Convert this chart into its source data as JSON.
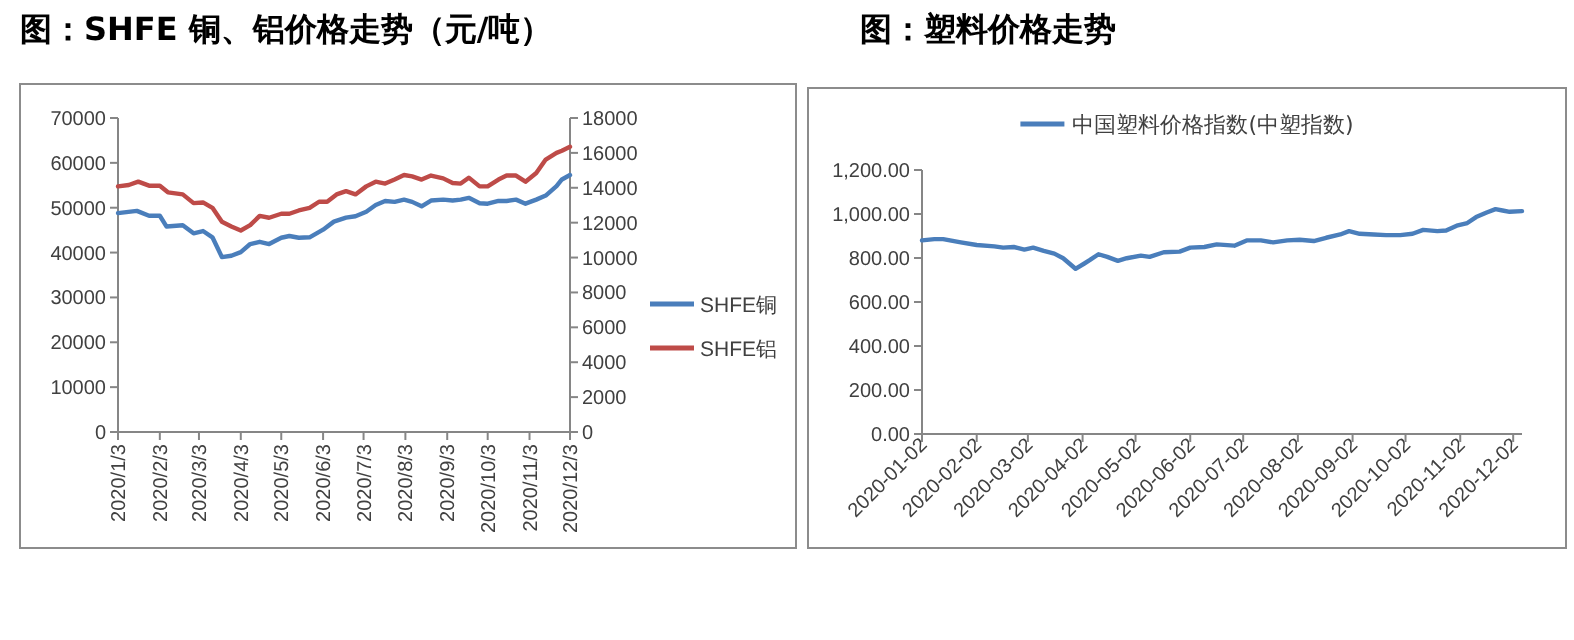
{
  "chart_data": [
    {
      "type": "line",
      "title": "图：SHFE 铜、铝价格走势（元/吨）",
      "xlim": [
        "2020-01-03",
        "2020-12-03"
      ],
      "xticks": [
        {
          "value": "2020-01-03",
          "label": "2020/1/3"
        },
        {
          "value": "2020-02-03",
          "label": "2020/2/3"
        },
        {
          "value": "2020-03-03",
          "label": "2020/3/3"
        },
        {
          "value": "2020-04-03",
          "label": "2020/4/3"
        },
        {
          "value": "2020-05-03",
          "label": "2020/5/3"
        },
        {
          "value": "2020-06-03",
          "label": "2020/6/3"
        },
        {
          "value": "2020-07-03",
          "label": "2020/7/3"
        },
        {
          "value": "2020-08-03",
          "label": "2020/8/3"
        },
        {
          "value": "2020-09-03",
          "label": "2020/9/3"
        },
        {
          "value": "2020-10-03",
          "label": "2020/10/3"
        },
        {
          "value": "2020-11-03",
          "label": "2020/11/3"
        },
        {
          "value": "2020-12-03",
          "label": "2020/12/3"
        }
      ],
      "ylim": [
        0,
        70000
      ],
      "yticks": [
        0,
        10000,
        20000,
        30000,
        40000,
        50000,
        60000,
        70000
      ],
      "y2lim": [
        0,
        18000
      ],
      "y2ticks": [
        0,
        2000,
        4000,
        6000,
        8000,
        10000,
        12000,
        14000,
        16000,
        18000
      ],
      "legend": "right",
      "series": [
        {
          "name": "SHFE铜",
          "color": "#4a7ebb",
          "x": [
            "2020-01-03",
            "2020-01-17",
            "2020-01-26",
            "2020-02-03",
            "2020-02-08",
            "2020-02-20",
            "2020-02-28",
            "2020-03-06",
            "2020-03-13",
            "2020-03-20",
            "2020-03-27",
            "2020-04-03",
            "2020-04-10",
            "2020-04-17",
            "2020-04-24",
            "2020-05-03",
            "2020-05-09",
            "2020-05-16",
            "2020-05-24",
            "2020-06-03",
            "2020-06-11",
            "2020-06-20",
            "2020-06-27",
            "2020-07-05",
            "2020-07-12",
            "2020-07-19",
            "2020-07-26",
            "2020-08-02",
            "2020-08-08",
            "2020-08-15",
            "2020-08-22",
            "2020-08-31",
            "2020-09-07",
            "2020-09-13",
            "2020-09-19",
            "2020-09-27",
            "2020-10-03",
            "2020-10-11",
            "2020-10-17",
            "2020-10-24",
            "2020-10-31",
            "2020-11-08",
            "2020-11-15",
            "2020-11-23",
            "2020-11-27",
            "2020-12-03"
          ],
          "values": [
            48800,
            49300,
            48200,
            48200,
            45800,
            46100,
            44300,
            44800,
            43400,
            39000,
            39300,
            40100,
            41900,
            42400,
            41900,
            43300,
            43700,
            43300,
            43400,
            45100,
            46900,
            47800,
            48100,
            49100,
            50600,
            51500,
            51300,
            51800,
            51300,
            50300,
            51600,
            51800,
            51600,
            51800,
            52200,
            51000,
            50900,
            51500,
            51500,
            51800,
            50900,
            51800,
            52700,
            54800,
            56300,
            57300
          ]
        },
        {
          "name": "SHFE铝",
          "color": "#be4b48",
          "axis": "y2",
          "x": [
            "2020-01-03",
            "2020-01-11",
            "2020-01-18",
            "2020-01-26",
            "2020-02-03",
            "2020-02-09",
            "2020-02-20",
            "2020-02-28",
            "2020-03-06",
            "2020-03-13",
            "2020-03-20",
            "2020-03-27",
            "2020-04-03",
            "2020-04-10",
            "2020-04-17",
            "2020-04-24",
            "2020-05-03",
            "2020-05-09",
            "2020-05-16",
            "2020-05-24",
            "2020-05-31",
            "2020-06-06",
            "2020-06-13",
            "2020-06-20",
            "2020-06-27",
            "2020-07-05",
            "2020-07-12",
            "2020-07-19",
            "2020-07-26",
            "2020-08-02",
            "2020-08-08",
            "2020-08-15",
            "2020-08-22",
            "2020-08-31",
            "2020-09-07",
            "2020-09-13",
            "2020-09-19",
            "2020-09-27",
            "2020-10-03",
            "2020-10-11",
            "2020-10-17",
            "2020-10-24",
            "2020-10-31",
            "2020-11-08",
            "2020-11-15",
            "2020-11-23",
            "2020-11-27",
            "2020-12-03"
          ],
          "values": [
            14080,
            14160,
            14350,
            14120,
            14120,
            13740,
            13620,
            13120,
            13160,
            12850,
            12050,
            11780,
            11550,
            11860,
            12390,
            12280,
            12510,
            12510,
            12700,
            12850,
            13200,
            13200,
            13620,
            13810,
            13620,
            14080,
            14350,
            14240,
            14470,
            14730,
            14650,
            14470,
            14700,
            14540,
            14270,
            14240,
            14580,
            14080,
            14080,
            14470,
            14700,
            14700,
            14350,
            14850,
            15620,
            16000,
            16120,
            16350
          ]
        }
      ]
    },
    {
      "type": "line",
      "title": "图：塑料价格走势",
      "xlim": [
        "2020-01-02",
        "2020-12-07"
      ],
      "xticks": [
        {
          "value": "2020-01-02",
          "label": "2020-01-02"
        },
        {
          "value": "2020-02-02",
          "label": "2020-02-02"
        },
        {
          "value": "2020-03-02",
          "label": "2020-03-02"
        },
        {
          "value": "2020-04-02",
          "label": "2020-04-02"
        },
        {
          "value": "2020-05-02",
          "label": "2020-05-02"
        },
        {
          "value": "2020-06-02",
          "label": "2020-06-02"
        },
        {
          "value": "2020-07-02",
          "label": "2020-07-02"
        },
        {
          "value": "2020-08-02",
          "label": "2020-08-02"
        },
        {
          "value": "2020-09-02",
          "label": "2020-09-02"
        },
        {
          "value": "2020-10-02",
          "label": "2020-10-02"
        },
        {
          "value": "2020-11-02",
          "label": "2020-11-02"
        },
        {
          "value": "2020-12-02",
          "label": "2020-12-02"
        }
      ],
      "ylim": [
        0,
        1200
      ],
      "yticks": [
        {
          "value": 0,
          "label": "0.00"
        },
        {
          "value": 200,
          "label": "200.00"
        },
        {
          "value": 400,
          "label": "400.00"
        },
        {
          "value": 600,
          "label": "600.00"
        },
        {
          "value": 800,
          "label": "800.00"
        },
        {
          "value": 1000,
          "label": "1,000.00"
        },
        {
          "value": 1200,
          "label": "1,200.00"
        }
      ],
      "legend": "top",
      "series": [
        {
          "name": "中国塑料价格指数(中塑指数)",
          "color": "#4a7ebb",
          "x": [
            "2020-01-02",
            "2020-01-09",
            "2020-01-14",
            "2020-01-24",
            "2020-02-02",
            "2020-02-12",
            "2020-02-17",
            "2020-02-23",
            "2020-02-29",
            "2020-03-05",
            "2020-03-11",
            "2020-03-17",
            "2020-03-22",
            "2020-03-29",
            "2020-04-03",
            "2020-04-06",
            "2020-04-11",
            "2020-04-16",
            "2020-04-22",
            "2020-04-27",
            "2020-05-05",
            "2020-05-10",
            "2020-05-18",
            "2020-05-27",
            "2020-06-02",
            "2020-06-10",
            "2020-06-17",
            "2020-06-27",
            "2020-07-04",
            "2020-07-12",
            "2020-07-19",
            "2020-07-27",
            "2020-08-03",
            "2020-08-11",
            "2020-08-18",
            "2020-08-26",
            "2020-08-31",
            "2020-09-06",
            "2020-09-14",
            "2020-09-21",
            "2020-09-29",
            "2020-10-06",
            "2020-10-12",
            "2020-10-20",
            "2020-10-25",
            "2020-10-31",
            "2020-11-06",
            "2020-11-11",
            "2020-11-17",
            "2020-11-22",
            "2020-11-26",
            "2020-11-30",
            "2020-12-07"
          ],
          "values": [
            880,
            886,
            886,
            871,
            859,
            853,
            847,
            850,
            838,
            847,
            832,
            820,
            799,
            751,
            775,
            790,
            817,
            805,
            787,
            799,
            811,
            805,
            826,
            829,
            847,
            850,
            862,
            856,
            880,
            880,
            871,
            880,
            883,
            877,
            892,
            907,
            922,
            910,
            907,
            904,
            904,
            910,
            928,
            922,
            925,
            947,
            959,
            986,
            1007,
            1022,
            1016,
            1010,
            1013
          ]
        }
      ]
    }
  ]
}
